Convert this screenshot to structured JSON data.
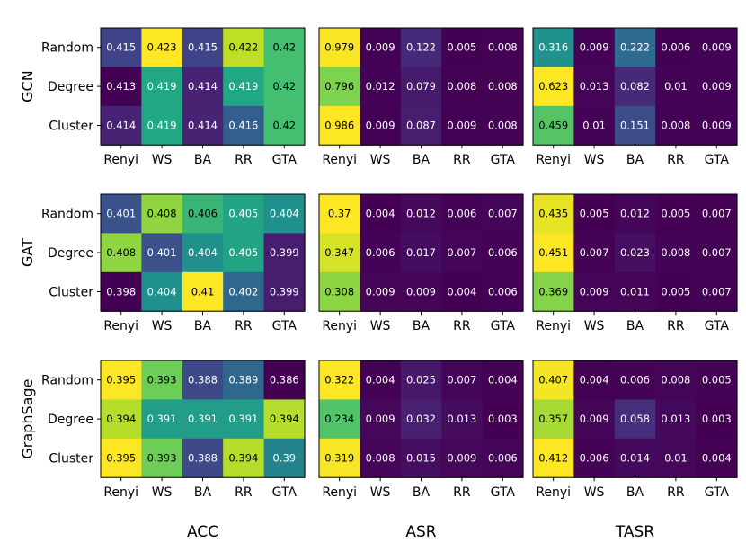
{
  "chart_data": {
    "type": "heatmap",
    "colormap": "viridis",
    "models": [
      "GCN",
      "GAT",
      "GraphSage"
    ],
    "metrics": [
      "ACC",
      "ASR",
      "TASR"
    ],
    "rows": [
      "Random",
      "Degree",
      "Cluster"
    ],
    "cols": [
      "Renyi",
      "WS",
      "BA",
      "RR",
      "GTA"
    ],
    "panels": [
      [
        [
          [
            "0.415",
            "0.423",
            "0.415",
            "0.422",
            "0.42"
          ],
          [
            "0.413",
            "0.419",
            "0.414",
            "0.419",
            "0.42"
          ],
          [
            "0.414",
            "0.419",
            "0.414",
            "0.416",
            "0.42"
          ]
        ],
        [
          [
            "0.979",
            "0.009",
            "0.122",
            "0.005",
            "0.008"
          ],
          [
            "0.796",
            "0.012",
            "0.079",
            "0.008",
            "0.008"
          ],
          [
            "0.986",
            "0.009",
            "0.087",
            "0.009",
            "0.008"
          ]
        ],
        [
          [
            "0.316",
            "0.009",
            "0.222",
            "0.006",
            "0.009"
          ],
          [
            "0.623",
            "0.013",
            "0.082",
            "0.01",
            "0.009"
          ],
          [
            "0.459",
            "0.01",
            "0.151",
            "0.008",
            "0.009"
          ]
        ]
      ],
      [
        [
          [
            "0.401",
            "0.408",
            "0.406",
            "0.405",
            "0.404"
          ],
          [
            "0.408",
            "0.401",
            "0.404",
            "0.405",
            "0.399"
          ],
          [
            "0.398",
            "0.404",
            "0.41",
            "0.402",
            "0.399"
          ]
        ],
        [
          [
            "0.37",
            "0.004",
            "0.012",
            "0.006",
            "0.007"
          ],
          [
            "0.347",
            "0.006",
            "0.017",
            "0.007",
            "0.006"
          ],
          [
            "0.308",
            "0.009",
            "0.009",
            "0.004",
            "0.006"
          ]
        ],
        [
          [
            "0.435",
            "0.005",
            "0.012",
            "0.005",
            "0.007"
          ],
          [
            "0.451",
            "0.007",
            "0.023",
            "0.008",
            "0.007"
          ],
          [
            "0.369",
            "0.009",
            "0.011",
            "0.005",
            "0.007"
          ]
        ]
      ],
      [
        [
          [
            "0.395",
            "0.393",
            "0.388",
            "0.389",
            "0.386"
          ],
          [
            "0.394",
            "0.391",
            "0.391",
            "0.391",
            "0.394"
          ],
          [
            "0.395",
            "0.393",
            "0.388",
            "0.394",
            "0.39"
          ]
        ],
        [
          [
            "0.322",
            "0.004",
            "0.025",
            "0.007",
            "0.004"
          ],
          [
            "0.234",
            "0.009",
            "0.032",
            "0.013",
            "0.003"
          ],
          [
            "0.319",
            "0.008",
            "0.015",
            "0.009",
            "0.006"
          ]
        ],
        [
          [
            "0.407",
            "0.004",
            "0.006",
            "0.008",
            "0.005"
          ],
          [
            "0.357",
            "0.009",
            "0.058",
            "0.013",
            "0.003"
          ],
          [
            "0.412",
            "0.006",
            "0.014",
            "0.01",
            "0.004"
          ]
        ]
      ]
    ]
  }
}
